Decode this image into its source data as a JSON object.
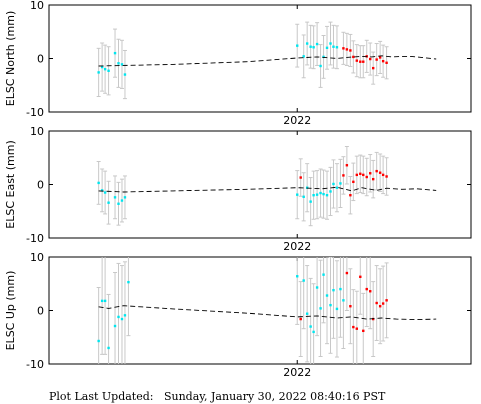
{
  "footer": {
    "text": "Plot Last Updated:   Sunday, January 30, 2022 08:40:16 PST"
  },
  "colors": {
    "older": "#00e5ee",
    "recent": "#ff0000",
    "error_bar": "#c8c8c8",
    "trend": "#000000",
    "frame": "#000000"
  },
  "chart_data": [
    {
      "type": "scatter",
      "ylabel": "ELSC North (mm)",
      "x_tick_label": "2022",
      "yticks": [
        "10",
        "0",
        "-10"
      ],
      "ylim": [
        -10,
        10
      ],
      "grid": false,
      "trend": [
        [
          2021.6,
          -1.4
        ],
        [
          2021.75,
          -1.1
        ],
        [
          2021.9,
          -0.6
        ],
        [
          2022.0,
          0.1
        ],
        [
          2022.04,
          0.3
        ],
        [
          2022.08,
          0.0
        ],
        [
          2022.1,
          0.2
        ],
        [
          2022.13,
          0.4
        ],
        [
          2022.15,
          0.3
        ],
        [
          2022.17,
          0.5
        ],
        [
          2022.19,
          0.3
        ],
        [
          2022.21,
          0.4
        ],
        [
          2022.23,
          0.4
        ],
        [
          2022.25,
          0.2
        ],
        [
          2022.27,
          0.0
        ],
        [
          2022.28,
          -0.1
        ]
      ],
      "series": [
        {
          "points": [
            {
              "x": 2021.6,
              "y": -2.6,
              "err": 4.5
            },
            {
              "x": 2021.607,
              "y": -1.6,
              "err": 4.5
            },
            {
              "x": 2021.613,
              "y": -2.0,
              "err": 4.5
            },
            {
              "x": 2021.62,
              "y": -2.3,
              "err": 4.5
            },
            {
              "x": 2021.633,
              "y": 1.0,
              "err": 4.5
            },
            {
              "x": 2021.64,
              "y": -0.9,
              "err": 4.5
            },
            {
              "x": 2021.647,
              "y": -1.1,
              "err": 4.5
            },
            {
              "x": 2021.653,
              "y": -3.0,
              "err": 4.5
            },
            {
              "x": 2022.0,
              "y": 2.4,
              "err": 4.0
            },
            {
              "x": 2022.013,
              "y": 0.4,
              "err": 4.0
            },
            {
              "x": 2022.02,
              "y": 2.8,
              "err": 4.0
            },
            {
              "x": 2022.027,
              "y": 2.2,
              "err": 4.0
            },
            {
              "x": 2022.033,
              "y": 2.1,
              "err": 4.0
            },
            {
              "x": 2022.04,
              "y": 2.7,
              "err": 4.0
            },
            {
              "x": 2022.047,
              "y": -1.4,
              "err": 4.0
            },
            {
              "x": 2022.053,
              "y": 0.3,
              "err": 4.0
            },
            {
              "x": 2022.06,
              "y": 2.0,
              "err": 4.0
            },
            {
              "x": 2022.067,
              "y": 2.8,
              "err": 4.0
            },
            {
              "x": 2022.073,
              "y": 2.2,
              "err": 4.0
            },
            {
              "x": 2022.08,
              "y": 2.1,
              "err": 4.0
            }
          ]
        },
        {
          "points": [
            {
              "x": 2022.093,
              "y": 1.9,
              "err": 3.0
            },
            {
              "x": 2022.1,
              "y": 1.7,
              "err": 3.0
            },
            {
              "x": 2022.107,
              "y": 1.5,
              "err": 3.0
            },
            {
              "x": 2022.113,
              "y": 0.3,
              "err": 3.0
            },
            {
              "x": 2022.12,
              "y": -0.4,
              "err": 3.0
            },
            {
              "x": 2022.127,
              "y": -0.6,
              "err": 3.0
            },
            {
              "x": 2022.133,
              "y": -0.6,
              "err": 3.0
            },
            {
              "x": 2022.14,
              "y": 0.4,
              "err": 3.0
            },
            {
              "x": 2022.147,
              "y": -0.1,
              "err": 3.0
            },
            {
              "x": 2022.153,
              "y": -1.8,
              "err": 3.0
            },
            {
              "x": 2022.16,
              "y": -0.2,
              "err": 3.0
            },
            {
              "x": 2022.167,
              "y": 0.2,
              "err": 3.0
            },
            {
              "x": 2022.173,
              "y": -0.5,
              "err": 3.0
            },
            {
              "x": 2022.18,
              "y": -0.8,
              "err": 3.0
            }
          ]
        }
      ]
    },
    {
      "type": "scatter",
      "ylabel": "ELSC East (mm)",
      "x_tick_label": "2022",
      "yticks": [
        "10",
        "0",
        "-10"
      ],
      "ylim": [
        -10,
        10
      ],
      "grid": false,
      "trend": [
        [
          2021.6,
          -1.2
        ],
        [
          2021.65,
          -1.4
        ],
        [
          2021.75,
          -1.2
        ],
        [
          2021.9,
          -0.9
        ],
        [
          2022.0,
          -0.6
        ],
        [
          2022.05,
          -0.8
        ],
        [
          2022.08,
          -0.5
        ],
        [
          2022.11,
          -1.2
        ],
        [
          2022.13,
          -0.6
        ],
        [
          2022.16,
          -1.1
        ],
        [
          2022.18,
          -0.7
        ],
        [
          2022.21,
          -0.9
        ],
        [
          2022.24,
          -0.8
        ],
        [
          2022.28,
          -1.1
        ]
      ],
      "series": [
        {
          "points": [
            {
              "x": 2021.6,
              "y": 0.3,
              "err": 4.0
            },
            {
              "x": 2021.607,
              "y": -1.1,
              "err": 4.0
            },
            {
              "x": 2021.613,
              "y": -1.5,
              "err": 4.0
            },
            {
              "x": 2021.62,
              "y": -3.4,
              "err": 4.0
            },
            {
              "x": 2021.633,
              "y": -2.4,
              "err": 4.0
            },
            {
              "x": 2021.64,
              "y": -3.6,
              "err": 4.0
            },
            {
              "x": 2021.647,
              "y": -3.0,
              "err": 4.0
            },
            {
              "x": 2021.653,
              "y": -2.4,
              "err": 4.0
            },
            {
              "x": 2022.0,
              "y": -1.9,
              "err": 4.5
            },
            {
              "x": 2022.013,
              "y": -2.3,
              "err": 4.5
            },
            {
              "x": 2022.02,
              "y": -0.6,
              "err": 4.5
            },
            {
              "x": 2022.027,
              "y": -3.2,
              "err": 4.5
            },
            {
              "x": 2022.033,
              "y": -2.0,
              "err": 4.5
            },
            {
              "x": 2022.04,
              "y": -1.9,
              "err": 4.5
            },
            {
              "x": 2022.047,
              "y": -1.6,
              "err": 4.5
            },
            {
              "x": 2022.053,
              "y": -1.8,
              "err": 4.5
            },
            {
              "x": 2022.06,
              "y": -2.0,
              "err": 4.5
            },
            {
              "x": 2022.067,
              "y": -1.3,
              "err": 4.5
            },
            {
              "x": 2022.073,
              "y": 0.1,
              "err": 4.5
            },
            {
              "x": 2022.08,
              "y": -0.6,
              "err": 4.5
            },
            {
              "x": 2022.087,
              "y": 0.2,
              "err": 4.5
            }
          ]
        },
        {
          "points": [
            {
              "x": 2022.007,
              "y": 1.3,
              "err": 3.5
            },
            {
              "x": 2022.093,
              "y": 1.7,
              "err": 3.5
            },
            {
              "x": 2022.1,
              "y": 3.6,
              "err": 3.5
            },
            {
              "x": 2022.107,
              "y": -2.0,
              "err": 3.5
            },
            {
              "x": 2022.113,
              "y": 0.5,
              "err": 3.5
            },
            {
              "x": 2022.12,
              "y": 1.8,
              "err": 3.5
            },
            {
              "x": 2022.127,
              "y": 2.0,
              "err": 3.5
            },
            {
              "x": 2022.133,
              "y": 1.8,
              "err": 3.5
            },
            {
              "x": 2022.14,
              "y": 1.4,
              "err": 3.5
            },
            {
              "x": 2022.147,
              "y": 2.1,
              "err": 3.5
            },
            {
              "x": 2022.153,
              "y": 1.0,
              "err": 3.5
            },
            {
              "x": 2022.16,
              "y": 2.5,
              "err": 3.5
            },
            {
              "x": 2022.167,
              "y": 2.2,
              "err": 3.5
            },
            {
              "x": 2022.173,
              "y": 1.8,
              "err": 3.5
            },
            {
              "x": 2022.18,
              "y": 1.5,
              "err": 3.5
            }
          ]
        }
      ]
    },
    {
      "type": "scatter",
      "ylabel": "ELSC Up (mm)",
      "x_tick_label": "2022",
      "yticks": [
        "10",
        "0",
        "-10"
      ],
      "ylim": [
        -10,
        10
      ],
      "grid": false,
      "trend": [
        [
          2021.6,
          0.7
        ],
        [
          2021.62,
          0.4
        ],
        [
          2021.65,
          0.9
        ],
        [
          2021.75,
          0.3
        ],
        [
          2021.9,
          -0.5
        ],
        [
          2022.0,
          -1.2
        ],
        [
          2022.04,
          -1.0
        ],
        [
          2022.08,
          -1.4
        ],
        [
          2022.11,
          -1.2
        ],
        [
          2022.14,
          -1.6
        ],
        [
          2022.17,
          -1.4
        ],
        [
          2022.2,
          -1.6
        ],
        [
          2022.24,
          -1.7
        ],
        [
          2022.28,
          -1.6
        ]
      ],
      "series": [
        {
          "points": [
            {
              "x": 2021.6,
              "y": -5.7,
              "err": 10.0
            },
            {
              "x": 2021.607,
              "y": 1.8,
              "err": 10.0
            },
            {
              "x": 2021.613,
              "y": 1.8,
              "err": 10.0
            },
            {
              "x": 2021.62,
              "y": -7.0,
              "err": 10.0
            },
            {
              "x": 2021.633,
              "y": -2.9,
              "err": 10.0
            },
            {
              "x": 2021.64,
              "y": -1.2,
              "err": 10.0
            },
            {
              "x": 2021.647,
              "y": -1.6,
              "err": 10.0
            },
            {
              "x": 2021.653,
              "y": -0.9,
              "err": 10.0
            },
            {
              "x": 2021.66,
              "y": 5.3,
              "err": 10.0
            },
            {
              "x": 2022.0,
              "y": 6.4,
              "err": 9.0
            },
            {
              "x": 2022.013,
              "y": 5.6,
              "err": 9.0
            },
            {
              "x": 2022.02,
              "y": -0.6,
              "err": 9.0
            },
            {
              "x": 2022.027,
              "y": -3.0,
              "err": 9.0
            },
            {
              "x": 2022.033,
              "y": -4.0,
              "err": 9.0
            },
            {
              "x": 2022.04,
              "y": 4.3,
              "err": 9.0
            },
            {
              "x": 2022.047,
              "y": 0.4,
              "err": 9.0
            },
            {
              "x": 2022.053,
              "y": 6.7,
              "err": 9.0
            },
            {
              "x": 2022.06,
              "y": 2.8,
              "err": 9.0
            },
            {
              "x": 2022.067,
              "y": 1.0,
              "err": 9.0
            },
            {
              "x": 2022.073,
              "y": 3.8,
              "err": 9.0
            },
            {
              "x": 2022.08,
              "y": 0.3,
              "err": 9.0
            },
            {
              "x": 2022.087,
              "y": 4.0,
              "err": 9.0
            },
            {
              "x": 2022.093,
              "y": 1.9,
              "err": 9.0
            }
          ]
        },
        {
          "points": [
            {
              "x": 2022.007,
              "y": -1.6,
              "err": 7.0
            },
            {
              "x": 2022.1,
              "y": 7.0,
              "err": 7.0
            },
            {
              "x": 2022.107,
              "y": 0.8,
              "err": 7.0
            },
            {
              "x": 2022.113,
              "y": -3.1,
              "err": 7.0
            },
            {
              "x": 2022.12,
              "y": -3.4,
              "err": 7.0
            },
            {
              "x": 2022.127,
              "y": 6.3,
              "err": 7.0
            },
            {
              "x": 2022.133,
              "y": -3.8,
              "err": 7.0
            },
            {
              "x": 2022.14,
              "y": 4.0,
              "err": 7.0
            },
            {
              "x": 2022.147,
              "y": 3.6,
              "err": 7.0
            },
            {
              "x": 2022.153,
              "y": -1.6,
              "err": 7.0
            },
            {
              "x": 2022.16,
              "y": 1.4,
              "err": 7.0
            },
            {
              "x": 2022.167,
              "y": 0.8,
              "err": 7.0
            },
            {
              "x": 2022.173,
              "y": 1.3,
              "err": 7.0
            },
            {
              "x": 2022.18,
              "y": 1.9,
              "err": 7.0
            }
          ]
        }
      ]
    }
  ]
}
